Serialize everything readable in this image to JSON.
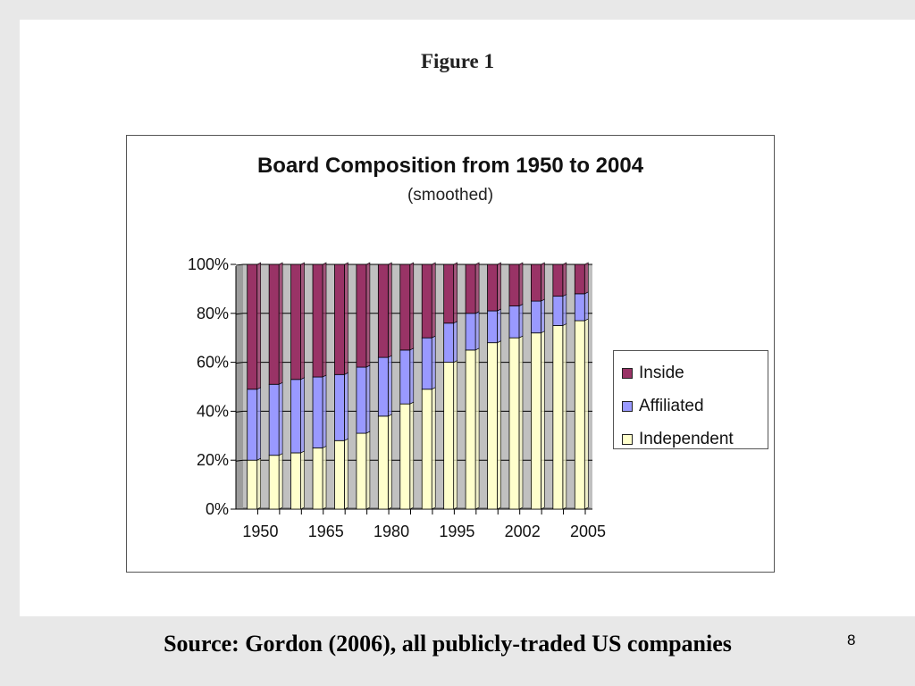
{
  "slide": {
    "figure_label": "Figure 1",
    "source": "Source: Gordon (2006), all publicly-traded US companies",
    "page_number": "8"
  },
  "colors": {
    "inside": "#993366",
    "affiliated": "#9999ff",
    "independent": "#ffffcc",
    "plot_background": "#c0c0c0"
  },
  "chart_data": {
    "type": "bar",
    "stacked": true,
    "title": "Board Composition from 1950 to 2004",
    "subtitle": "(smoothed)",
    "xlabel": "",
    "ylabel": "",
    "ylim": [
      0,
      100
    ],
    "y_ticks": [
      "0%",
      "20%",
      "40%",
      "60%",
      "80%",
      "100%"
    ],
    "x_tick_labels": [
      "1950",
      "1965",
      "1980",
      "1995",
      "2002",
      "2005"
    ],
    "x_tick_label_positions": [
      1,
      4,
      7,
      10,
      13,
      16
    ],
    "grid": true,
    "legend_position": "right",
    "bar_count": 16,
    "series": [
      {
        "name": "Independent",
        "color": "#ffffcc",
        "values": [
          20,
          22,
          23,
          25,
          28,
          31,
          38,
          43,
          49,
          60,
          65,
          68,
          70,
          72,
          75,
          77
        ]
      },
      {
        "name": "Affiliated",
        "color": "#9999ff",
        "values": [
          29,
          29,
          30,
          29,
          27,
          27,
          24,
          22,
          21,
          16,
          15,
          13,
          13,
          13,
          12,
          11
        ]
      },
      {
        "name": "Inside",
        "color": "#993366",
        "values": [
          51,
          49,
          47,
          46,
          45,
          42,
          38,
          35,
          30,
          24,
          20,
          19,
          17,
          15,
          13,
          12
        ]
      }
    ],
    "legend_order": [
      "Inside",
      "Affiliated",
      "Independent"
    ]
  }
}
